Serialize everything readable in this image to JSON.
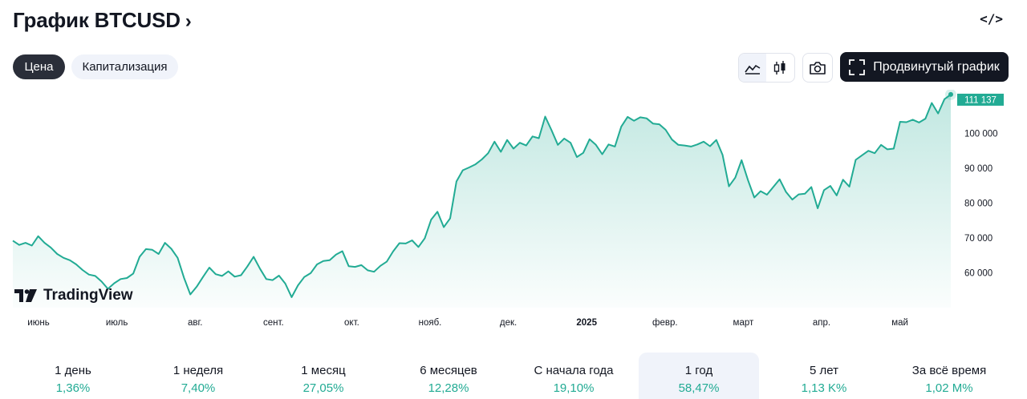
{
  "header": {
    "title": "График BTCUSD",
    "chevron": "›",
    "embed_icon": "</>"
  },
  "tabs": {
    "active": "Цена",
    "inactive": "Капитализация"
  },
  "toolbar": {
    "area_icon": "area-chart-icon",
    "candles_icon": "candles-icon",
    "camera_icon": "camera-icon",
    "advanced_label": "Продвинутый график"
  },
  "colors": {
    "line": "#22ab94",
    "fill_top": "#c8ece4",
    "price_tag": "#22ab94",
    "positive": "#22ab94",
    "dark": "#131722"
  },
  "logo": {
    "text": "TradingView"
  },
  "chart_data": {
    "type": "area",
    "series": [
      {
        "values": [
          69200,
          68000,
          68600,
          67800,
          70500,
          68600,
          67200,
          65400,
          64300,
          63600,
          62400,
          60800,
          59500,
          59100,
          57500,
          55400,
          57000,
          58200,
          58500,
          59800,
          64600,
          66800,
          66600,
          65400,
          68600,
          66900,
          64300,
          58600,
          53800,
          56000,
          58800,
          61500,
          59600,
          59100,
          60400,
          58900,
          59300,
          61800,
          64600,
          61200,
          58200,
          57900,
          59200,
          56900,
          53000,
          56400,
          58800,
          59900,
          62400,
          63400,
          63600,
          65200,
          66200,
          61900,
          61700,
          62200,
          60700,
          60300,
          62000,
          63200,
          66100,
          68500,
          68400,
          69300,
          67400,
          69900,
          75200,
          77500,
          73100,
          75600,
          86200,
          89400,
          90200,
          91100,
          92500,
          94300,
          97600,
          94700,
          98100,
          95600,
          97300,
          96500,
          99100,
          98600,
          104800,
          100900,
          96700,
          98500,
          97300,
          93200,
          94400,
          98300,
          96700,
          94000,
          96800,
          96200,
          101900,
          104700,
          103600,
          104600,
          104300,
          102800,
          102600,
          101000,
          98200,
          96700,
          96500,
          96200,
          96800,
          97600,
          96300,
          98100,
          93800,
          84800,
          87300,
          92300,
          86600,
          81600,
          83400,
          82400,
          84600,
          86800,
          83200,
          81000,
          82500,
          82700,
          84600,
          78500,
          83700,
          84900,
          82200,
          86700,
          84700,
          92400,
          93700,
          95000,
          94300,
          96700,
          95400,
          95600,
          103300,
          103200,
          103900,
          103100,
          104200,
          108700,
          105700,
          109800,
          111137
        ]
      }
    ],
    "x_labels": [
      "июнь",
      "июль",
      "авг.",
      "сент.",
      "окт.",
      "нояб.",
      "дек.",
      "2025",
      "февр.",
      "март",
      "апр.",
      "май"
    ],
    "y_ticks": [
      60000,
      70000,
      80000,
      90000,
      100000
    ],
    "y_tick_labels": [
      "60 000",
      "70 000",
      "80 000",
      "90 000",
      "100 000"
    ],
    "last_price_label": "111 137",
    "ylim": [
      50000,
      112500
    ],
    "grid": false
  },
  "periods": [
    {
      "label": "1 день",
      "value": "1,36%"
    },
    {
      "label": "1 неделя",
      "value": "7,40%"
    },
    {
      "label": "1 месяц",
      "value": "27,05%"
    },
    {
      "label": "6 месяцев",
      "value": "12,28%"
    },
    {
      "label": "С начала года",
      "value": "19,10%"
    },
    {
      "label": "1 год",
      "value": "58,47%"
    },
    {
      "label": "5 лет",
      "value": "1,13 K%"
    },
    {
      "label": "За всё время",
      "value": "1,02 M%"
    }
  ],
  "active_period": "1 год"
}
